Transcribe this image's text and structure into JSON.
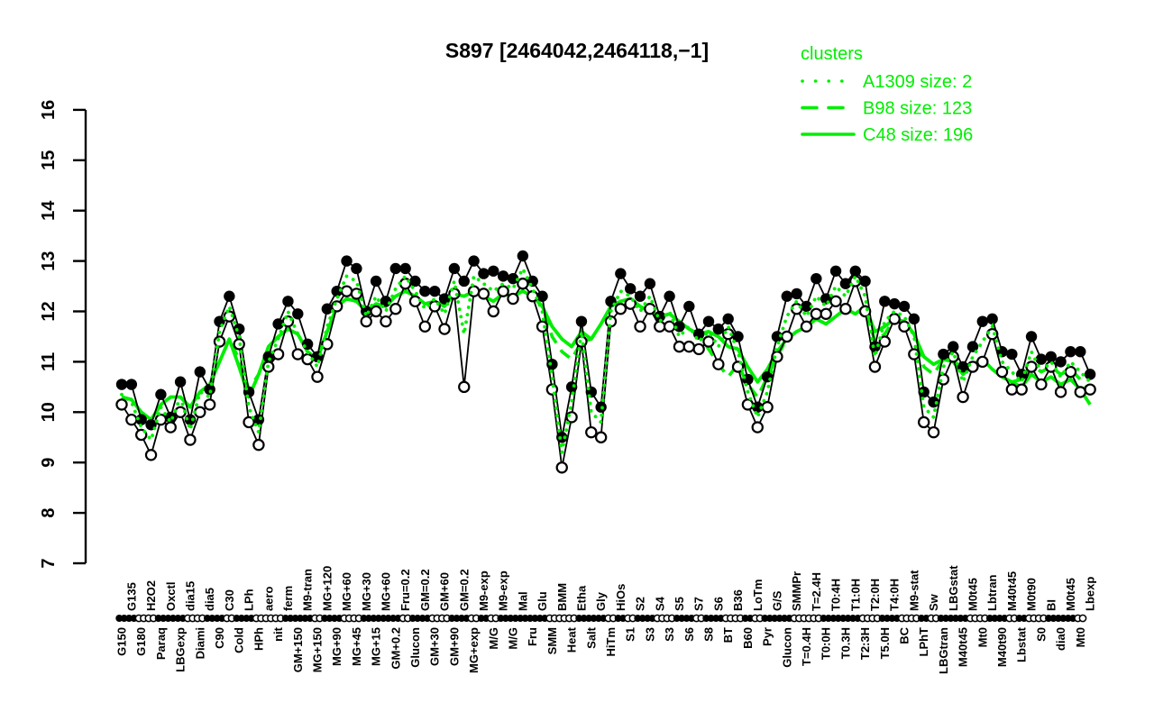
{
  "title": "S897 [2464042,2464118,−1]",
  "colors": {
    "cluster_green": "#00EE00",
    "profile_black": "#000000",
    "background": "#FFFFFF"
  },
  "legend": {
    "title": "clusters",
    "items": [
      {
        "label": "A1309 size: 2",
        "line": "dotted"
      },
      {
        "label": "B98 size: 123",
        "line": "dashed"
      },
      {
        "label": "C48 size: 196",
        "line": "solid"
      }
    ]
  },
  "y_axis": {
    "min": 7,
    "max": 16,
    "ticks": [
      7,
      8,
      9,
      10,
      11,
      12,
      13,
      14,
      15,
      16
    ]
  },
  "chart_data": {
    "type": "line",
    "title": "S897 [2464042,2464118,−1]",
    "ylim": [
      7,
      16
    ],
    "grid": false,
    "legend_position": "top-right",
    "categories": [
      "G150",
      "G135",
      "G180",
      "H2O2",
      "Paraq",
      "Oxctl",
      "LBGexp",
      "dia15",
      "Diami",
      "dia5",
      "C90",
      "C30",
      "Cold",
      "LPh",
      "HPh",
      "aero",
      "nit",
      "ferm",
      "GM+150",
      "M9-tran",
      "MG+150",
      "MG+120",
      "MG+90",
      "MG+60",
      "MG+45",
      "MG+30",
      "MG+15",
      "MG+60",
      "GM+0.2",
      "Fru=0.2",
      "Glucon",
      "GM=0.2",
      "GM+30",
      "GM+60",
      "GM+90",
      "GM=0.2",
      "MG+exp",
      "M9-exp",
      "M/G",
      "M9-exp",
      "M/G",
      "Mal",
      "Fru",
      "Glu",
      "SMM",
      "BMM",
      "Heat",
      "Etha",
      "Salt",
      "Gly",
      "HiTm",
      "HiOs",
      "S1",
      "S2",
      "S3",
      "S4",
      "S3",
      "S5",
      "S6",
      "S7",
      "S8",
      "S6",
      "BT",
      "B36",
      "B60",
      "LoTm",
      "Pyr",
      "G/S",
      "Glucon",
      "SMMPr",
      "T=0.4H",
      "T=2.4H",
      "T0:0H",
      "T0:4H",
      "T0.3H",
      "T1:0H",
      "T2:3H",
      "T2:0H",
      "T5.0H",
      "T4:0H",
      "BC",
      "M9-stat",
      "LPhT",
      "Sw",
      "LBGtran",
      "LBGstat",
      "M40t45",
      "M0t45",
      "Mt0",
      "Lbtran",
      "M40t90",
      "M40t45",
      "Lbstat",
      "M0t90",
      "S0",
      "BI",
      "dia0",
      "M0t45",
      "Mt0",
      "Lbexp"
    ],
    "x_marker_strip": "ffoofffooffoffooofffoffooffffoffooffofofffffooofffofoffooffoffoofofffoooffffooffoofofffooffofoofffo",
    "series": [
      {
        "name": "gene-profile-filled",
        "color": "#000000",
        "marker": "filled-circle",
        "line": "solid-thin",
        "values": [
          10.55,
          10.55,
          9.85,
          9.75,
          10.35,
          9.9,
          10.6,
          9.85,
          10.8,
          10.45,
          11.8,
          12.3,
          11.65,
          10.4,
          9.85,
          11.1,
          11.75,
          12.2,
          11.95,
          11.35,
          11.1,
          12.05,
          12.4,
          13.0,
          12.85,
          12.0,
          12.6,
          12.2,
          12.85,
          12.85,
          12.6,
          12.4,
          12.4,
          12.25,
          12.85,
          12.6,
          13.0,
          12.75,
          12.8,
          12.7,
          12.65,
          13.1,
          12.6,
          12.3,
          10.95,
          9.5,
          10.5,
          11.8,
          10.4,
          10.1,
          12.2,
          12.75,
          12.45,
          12.3,
          12.55,
          11.9,
          12.3,
          11.7,
          12.1,
          11.55,
          11.8,
          11.65,
          11.85,
          11.5,
          10.65,
          10.1,
          10.7,
          11.5,
          12.3,
          12.35,
          12.1,
          12.65,
          12.25,
          12.8,
          12.55,
          12.8,
          12.6,
          11.3,
          12.2,
          12.15,
          12.1,
          11.85,
          10.4,
          10.2,
          11.15,
          11.3,
          10.9,
          11.3,
          11.8,
          11.85,
          11.2,
          11.15,
          10.75,
          11.5,
          11.05,
          11.1,
          11.0,
          11.2,
          11.2,
          10.75
        ]
      },
      {
        "name": "gene-profile-open",
        "color": "#000000",
        "marker": "open-circle",
        "line": "solid-thin",
        "values": [
          10.15,
          9.85,
          9.55,
          9.15,
          9.85,
          9.7,
          10.0,
          9.45,
          10.0,
          10.15,
          11.4,
          11.9,
          11.35,
          9.8,
          9.35,
          10.9,
          11.15,
          11.8,
          11.15,
          11.05,
          10.7,
          11.35,
          12.1,
          12.4,
          12.35,
          11.8,
          12.0,
          11.8,
          12.05,
          12.55,
          12.2,
          11.7,
          12.1,
          11.65,
          12.35,
          10.5,
          12.4,
          12.35,
          12.0,
          12.4,
          12.25,
          12.55,
          12.3,
          11.7,
          10.45,
          8.9,
          9.9,
          11.4,
          9.6,
          9.5,
          11.8,
          12.05,
          12.15,
          11.7,
          12.05,
          11.7,
          11.7,
          11.3,
          11.3,
          11.25,
          11.4,
          10.95,
          11.55,
          10.9,
          10.15,
          9.7,
          10.1,
          11.1,
          11.5,
          12.05,
          11.7,
          11.95,
          11.95,
          12.2,
          12.05,
          12.6,
          12.0,
          10.9,
          11.4,
          11.85,
          11.7,
          11.15,
          9.8,
          9.6,
          10.65,
          11.1,
          10.3,
          10.9,
          11.0,
          11.55,
          10.8,
          10.45,
          10.45,
          10.9,
          10.55,
          10.9,
          10.4,
          10.8,
          10.4,
          10.45
        ]
      },
      {
        "name": "A1309",
        "legend": "A1309 size: 2",
        "size": 2,
        "color": "#00EE00",
        "line": "dotted",
        "values": [
          10.35,
          10.2,
          9.7,
          9.45,
          10.1,
          9.8,
          10.3,
          9.65,
          10.4,
          10.3,
          11.6,
          12.1,
          11.5,
          10.1,
          9.6,
          11.0,
          11.45,
          12.0,
          11.55,
          11.2,
          10.9,
          11.7,
          12.25,
          12.7,
          12.6,
          11.9,
          12.3,
          12.0,
          12.45,
          12.7,
          12.4,
          12.05,
          12.25,
          11.95,
          12.6,
          11.55,
          12.7,
          12.55,
          12.4,
          12.55,
          12.45,
          12.85,
          12.45,
          12.0,
          10.7,
          9.2,
          10.2,
          11.6,
          10.0,
          9.8,
          12.0,
          12.4,
          12.3,
          12.0,
          12.3,
          11.8,
          12.0,
          11.5,
          11.7,
          11.4,
          11.6,
          11.3,
          11.7,
          11.2,
          10.4,
          9.9,
          10.4,
          11.3,
          11.9,
          12.2,
          11.9,
          12.3,
          12.1,
          12.5,
          12.3,
          12.7,
          12.3,
          11.1,
          11.8,
          12.0,
          11.9,
          11.5,
          10.1,
          9.9,
          10.9,
          11.2,
          10.6,
          11.1,
          11.4,
          11.7,
          11.0,
          10.8,
          10.6,
          11.2,
          10.8,
          11.0,
          10.7,
          11.0,
          10.8,
          10.6
        ]
      },
      {
        "name": "B98",
        "legend": "B98 size: 123",
        "size": 123,
        "color": "#00EE00",
        "line": "dashed",
        "values": [
          10.3,
          10.25,
          10.0,
          9.85,
          10.15,
          10.3,
          10.3,
          10.1,
          10.4,
          10.55,
          11.0,
          11.45,
          11.05,
          10.45,
          10.75,
          11.3,
          11.5,
          11.65,
          11.55,
          11.2,
          11.05,
          11.6,
          12.1,
          12.25,
          12.2,
          12.0,
          12.15,
          12.1,
          12.3,
          12.4,
          12.3,
          12.15,
          12.2,
          12.1,
          12.35,
          12.3,
          12.4,
          12.3,
          12.2,
          12.35,
          12.3,
          12.4,
          12.3,
          12.1,
          11.5,
          11.2,
          11.05,
          11.4,
          11.45,
          11.75,
          12.1,
          12.2,
          12.25,
          12.1,
          12.0,
          11.9,
          11.95,
          11.8,
          11.65,
          11.55,
          11.25,
          10.95,
          10.7,
          10.95,
          10.55,
          10.3,
          10.7,
          11.1,
          11.45,
          11.6,
          11.7,
          11.85,
          11.75,
          11.9,
          12.05,
          11.95,
          12.1,
          11.4,
          11.55,
          11.85,
          11.8,
          11.55,
          10.9,
          10.75,
          11.05,
          11.0,
          10.75,
          10.95,
          11.05,
          10.85,
          10.7,
          10.6,
          10.65,
          10.95,
          10.8,
          10.9,
          10.75,
          10.85,
          10.65,
          10.4
        ]
      },
      {
        "name": "C48",
        "legend": "C48 size: 196",
        "size": 196,
        "color": "#00EE00",
        "line": "solid",
        "values": [
          10.3,
          10.25,
          10.0,
          9.85,
          10.15,
          10.3,
          10.3,
          10.1,
          10.4,
          10.55,
          11.0,
          11.45,
          10.9,
          10.3,
          10.75,
          11.3,
          11.5,
          11.65,
          11.55,
          11.2,
          11.05,
          11.6,
          12.1,
          12.25,
          12.2,
          12.0,
          12.15,
          12.1,
          12.3,
          12.4,
          12.3,
          12.15,
          12.2,
          12.1,
          12.35,
          12.3,
          12.4,
          12.3,
          12.2,
          12.35,
          12.3,
          12.4,
          12.3,
          12.1,
          11.7,
          11.45,
          11.3,
          11.6,
          11.45,
          11.75,
          12.1,
          12.2,
          12.25,
          12.1,
          12.0,
          11.9,
          11.95,
          11.8,
          11.65,
          11.55,
          11.6,
          11.5,
          11.3,
          11.25,
          10.9,
          10.6,
          10.85,
          11.2,
          11.45,
          11.6,
          11.7,
          11.85,
          11.75,
          11.9,
          12.05,
          11.95,
          12.1,
          11.6,
          11.7,
          11.85,
          11.8,
          11.55,
          11.1,
          10.95,
          11.05,
          11.0,
          10.75,
          10.95,
          11.05,
          10.85,
          10.7,
          10.6,
          10.5,
          10.75,
          10.6,
          10.7,
          10.55,
          10.65,
          10.45,
          10.15
        ]
      }
    ]
  }
}
